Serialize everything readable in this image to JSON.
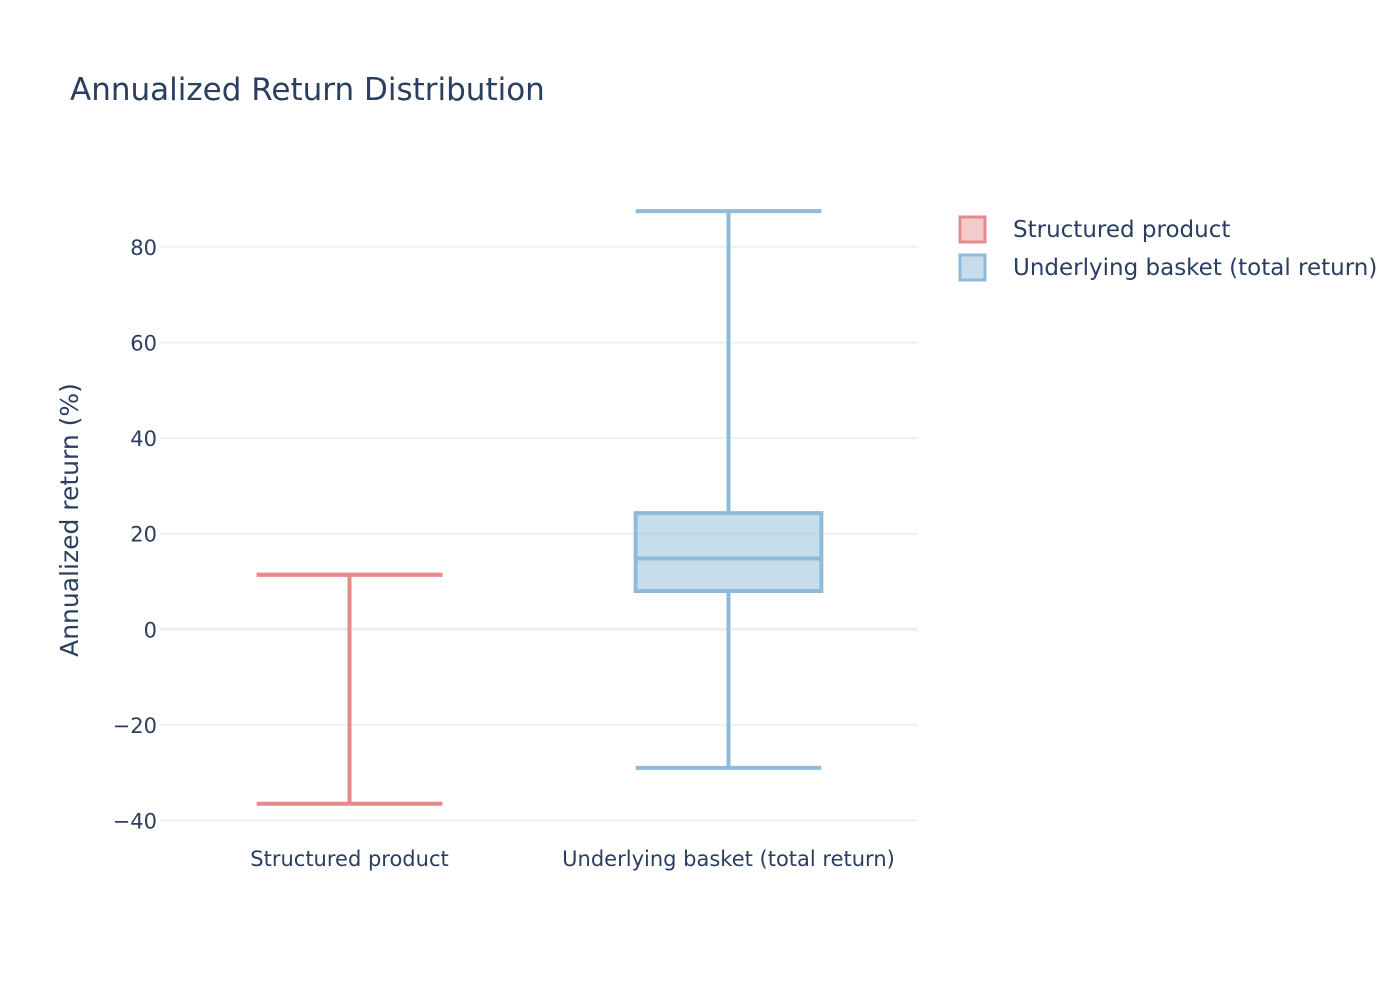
{
  "chart_data": {
    "type": "box",
    "title": "Annualized Return Distribution",
    "xlabel": "",
    "ylabel": "Annualized return (%)",
    "ylim": [
      -42,
      94
    ],
    "yticks": [
      -40,
      -20,
      0,
      20,
      40,
      60,
      80
    ],
    "ytick_labels": [
      "−40",
      "−20",
      "0",
      "20",
      "40",
      "60",
      "80"
    ],
    "categories": [
      "Structured product",
      "Underlying basket (total return)"
    ],
    "grid": true,
    "legend_position": "top-right",
    "series": [
      {
        "name": "Structured product",
        "category": "Structured product",
        "min": -36.5,
        "q1": 11.4,
        "median": 11.4,
        "q3": 11.4,
        "max": 11.4,
        "line_color": "#e58b8b",
        "fill_color": "rgba(229,139,139,0.45)"
      },
      {
        "name": "Underlying basket (total return)",
        "category": "Underlying basket (total return)",
        "min": -29.0,
        "q1": 8.0,
        "median": 14.8,
        "q3": 24.3,
        "max": 87.5,
        "line_color": "#8fbbd9",
        "fill_color": "rgba(143,187,217,0.5)"
      }
    ]
  }
}
